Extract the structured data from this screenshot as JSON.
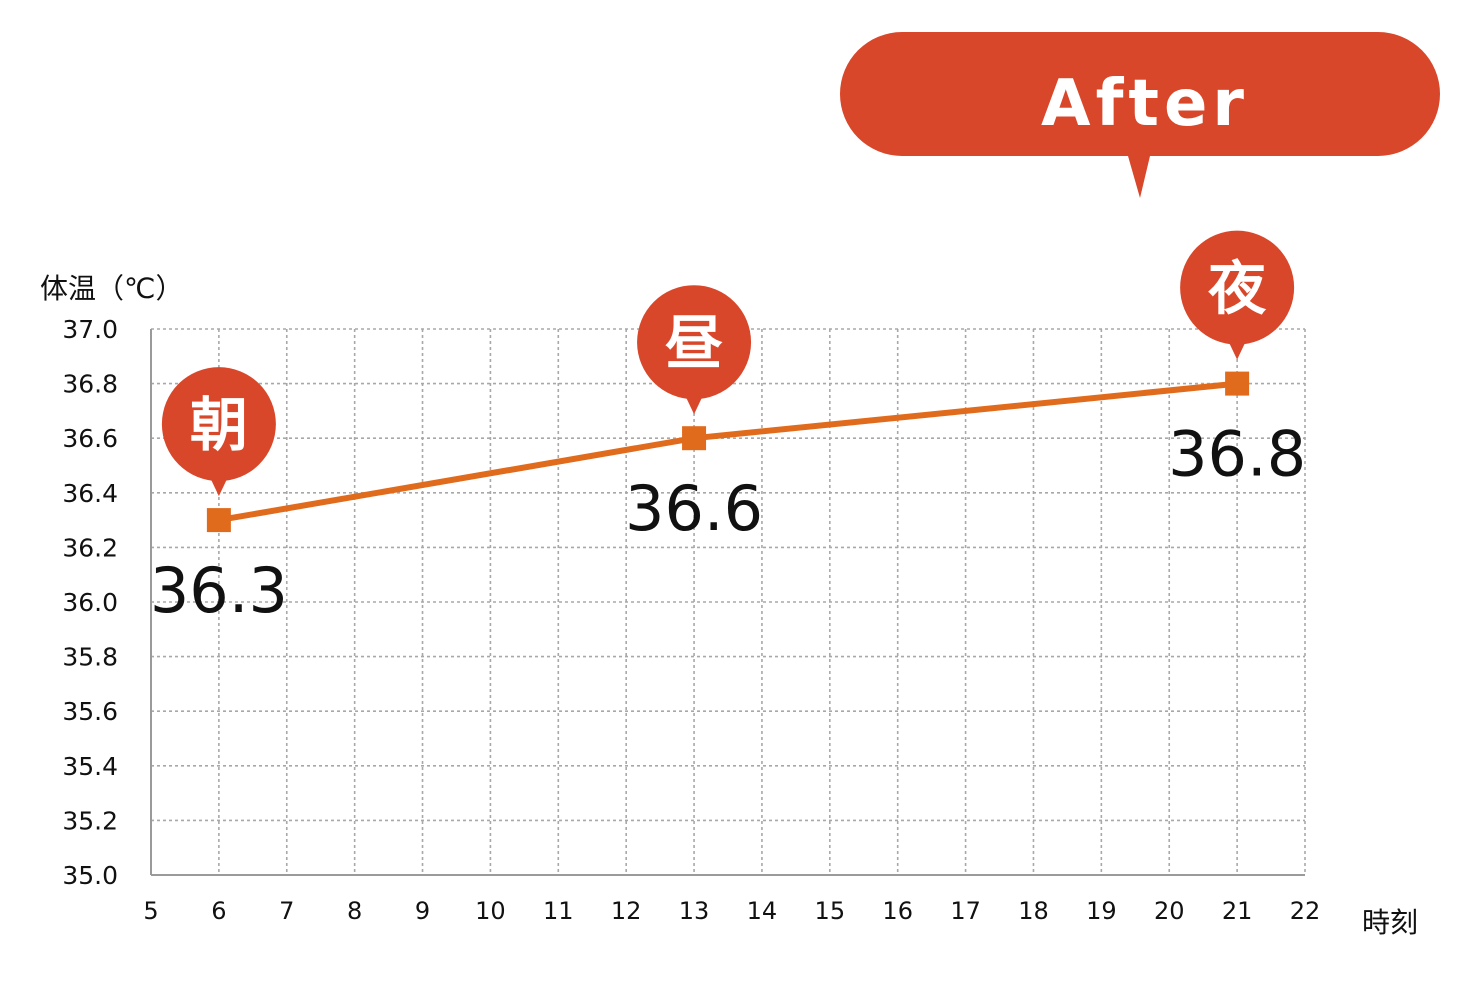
{
  "callout": {
    "label": "After",
    "color": "#d9472b"
  },
  "chart_data": {
    "type": "line",
    "ylabel": "体温（℃）",
    "xlabel": "時刻",
    "xlim": [
      5,
      22
    ],
    "ylim": [
      35.0,
      37.0
    ],
    "x_ticks": [
      "5",
      "6",
      "7",
      "8",
      "9",
      "10",
      "11",
      "12",
      "13",
      "14",
      "15",
      "16",
      "17",
      "18",
      "19",
      "20",
      "21",
      "22"
    ],
    "y_ticks": [
      "35.0",
      "35.2",
      "35.4",
      "35.6",
      "35.8",
      "36.0",
      "36.2",
      "36.4",
      "36.6",
      "36.8",
      "37.0"
    ],
    "grid": true,
    "series": [
      {
        "color": "#e06b1c",
        "marker": "square",
        "points": [
          {
            "x": 6,
            "y": 36.3,
            "value_label": "36.3",
            "time_badge": "朝"
          },
          {
            "x": 13,
            "y": 36.6,
            "value_label": "36.6",
            "time_badge": "昼"
          },
          {
            "x": 21,
            "y": 36.8,
            "value_label": "36.8",
            "time_badge": "夜"
          }
        ]
      }
    ],
    "badge_color": "#d9472b"
  }
}
